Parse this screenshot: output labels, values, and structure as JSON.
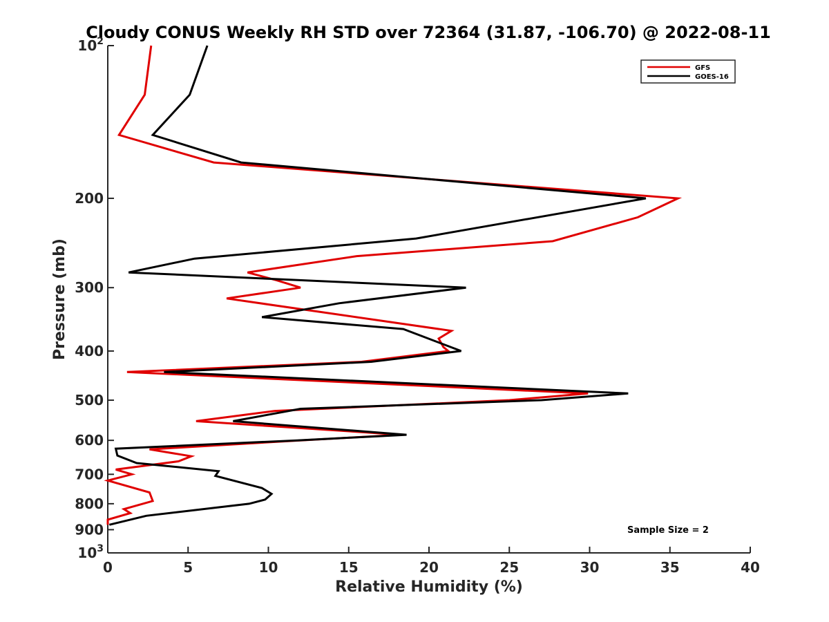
{
  "chart_data": {
    "type": "line",
    "title": "Cloudy CONUS Weekly RH STD over 72364 (31.87, -106.70) @ 2022-08-11",
    "xlabel": "Relative Humidity (%)",
    "ylabel": "Pressure (mb)",
    "xlim": [
      0,
      40
    ],
    "ylim": [
      100,
      1000
    ],
    "y_scale": "log",
    "y_reversed": true,
    "grid": false,
    "legend_position": "top-right",
    "x_ticks": [
      "0",
      "5",
      "10",
      "15",
      "20",
      "25",
      "30",
      "35",
      "40"
    ],
    "y_ticks": [
      {
        "base": "10",
        "exp": "2",
        "text": ""
      },
      {
        "base": "",
        "exp": "",
        "text": "200"
      },
      {
        "base": "",
        "exp": "",
        "text": "300"
      },
      {
        "base": "",
        "exp": "",
        "text": "400"
      },
      {
        "base": "",
        "exp": "",
        "text": "500"
      },
      {
        "base": "",
        "exp": "",
        "text": "600"
      },
      {
        "base": "",
        "exp": "",
        "text": "700"
      },
      {
        "base": "",
        "exp": "",
        "text": "800"
      },
      {
        "base": "",
        "exp": "",
        "text": "900"
      },
      {
        "base": "10",
        "exp": "3",
        "text": ""
      }
    ],
    "y_tick_values": [
      100,
      200,
      300,
      400,
      500,
      600,
      700,
      800,
      900,
      1000
    ],
    "annotation": "Sample Size = 2",
    "series": [
      {
        "name": "GFS",
        "color": "#e00000",
        "points": [
          [
            2.7,
            100
          ],
          [
            2.3,
            125
          ],
          [
            0.7,
            150
          ],
          [
            6.6,
            170
          ],
          [
            35.5,
            200
          ],
          [
            33,
            218
          ],
          [
            27.7,
            243
          ],
          [
            15.5,
            260
          ],
          [
            8.7,
            280
          ],
          [
            10.5,
            290
          ],
          [
            12,
            300
          ],
          [
            7.4,
            315
          ],
          [
            21.4,
            365
          ],
          [
            20.6,
            378
          ],
          [
            20.9,
            393
          ],
          [
            21.2,
            400
          ],
          [
            15.8,
            420
          ],
          [
            1.2,
            440
          ],
          [
            29.9,
            485
          ],
          [
            25,
            500
          ],
          [
            10.4,
            525
          ],
          [
            5.5,
            550
          ],
          [
            18.3,
            585
          ],
          [
            12,
            600
          ],
          [
            2.6,
            625
          ],
          [
            5.2,
            645
          ],
          [
            4.4,
            660
          ],
          [
            0.5,
            685
          ],
          [
            1.5,
            700
          ],
          [
            0,
            720
          ],
          [
            2.6,
            760
          ],
          [
            2.8,
            790
          ],
          [
            1.0,
            820
          ],
          [
            1.4,
            835
          ],
          [
            0,
            860
          ],
          [
            0,
            880
          ]
        ]
      },
      {
        "name": "GOES-16",
        "color": "#000000",
        "points": [
          [
            6.2,
            100
          ],
          [
            5.1,
            125
          ],
          [
            2.8,
            150
          ],
          [
            8.3,
            170
          ],
          [
            33.5,
            200
          ],
          [
            19.2,
            240
          ],
          [
            5.4,
            263
          ],
          [
            1.3,
            280
          ],
          [
            22.3,
            300
          ],
          [
            14.4,
            322
          ],
          [
            9.6,
            343
          ],
          [
            18.4,
            362
          ],
          [
            22.0,
            400
          ],
          [
            16.4,
            420
          ],
          [
            3.5,
            440
          ],
          [
            32.4,
            485
          ],
          [
            27,
            500
          ],
          [
            12,
            520
          ],
          [
            7.8,
            550
          ],
          [
            18.6,
            585
          ],
          [
            11.8,
            600
          ],
          [
            0.5,
            623
          ],
          [
            0.6,
            643
          ],
          [
            1.8,
            665
          ],
          [
            6.9,
            690
          ],
          [
            6.7,
            705
          ],
          [
            9.6,
            745
          ],
          [
            10.2,
            765
          ],
          [
            9.8,
            785
          ],
          [
            8.8,
            800
          ],
          [
            2.4,
            845
          ],
          [
            0.1,
            880
          ]
        ]
      }
    ]
  }
}
